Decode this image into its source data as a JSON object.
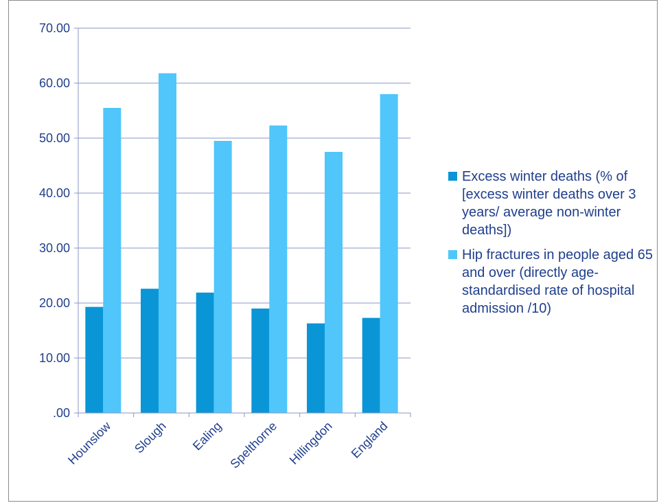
{
  "chart_data": {
    "type": "bar",
    "title": "",
    "xlabel": "",
    "ylabel": "",
    "categories": [
      "Hounslow",
      "Slough",
      "Ealing",
      "Spelthorne",
      "Hillingdon",
      "England"
    ],
    "series": [
      {
        "name": "Excess winter deaths  (% of [excess winter deaths over 3 years/ average non-winter deaths])",
        "color": "#0a95d6",
        "values": [
          19.3,
          22.6,
          21.9,
          19.0,
          16.3,
          17.3
        ]
      },
      {
        "name": "Hip fractures in people aged 65 and over (directly age-standardised rate of hospital admission /10)",
        "color": "#50c6fa",
        "values": [
          55.5,
          61.8,
          49.5,
          52.3,
          47.5,
          58.0
        ]
      }
    ],
    "ylim": [
      0,
      70
    ],
    "yticks": [
      0,
      10,
      20,
      30,
      40,
      50,
      60,
      70
    ],
    "ytick_labels": [
      ".00",
      "10.00",
      "20.00",
      "30.00",
      "40.00",
      "50.00",
      "60.00",
      "70.00"
    ],
    "grid": true,
    "legend_position": "right",
    "colors": {
      "axis": "#8b95c4",
      "grid": "#8b95c4",
      "text": "#1f3e8c"
    }
  }
}
